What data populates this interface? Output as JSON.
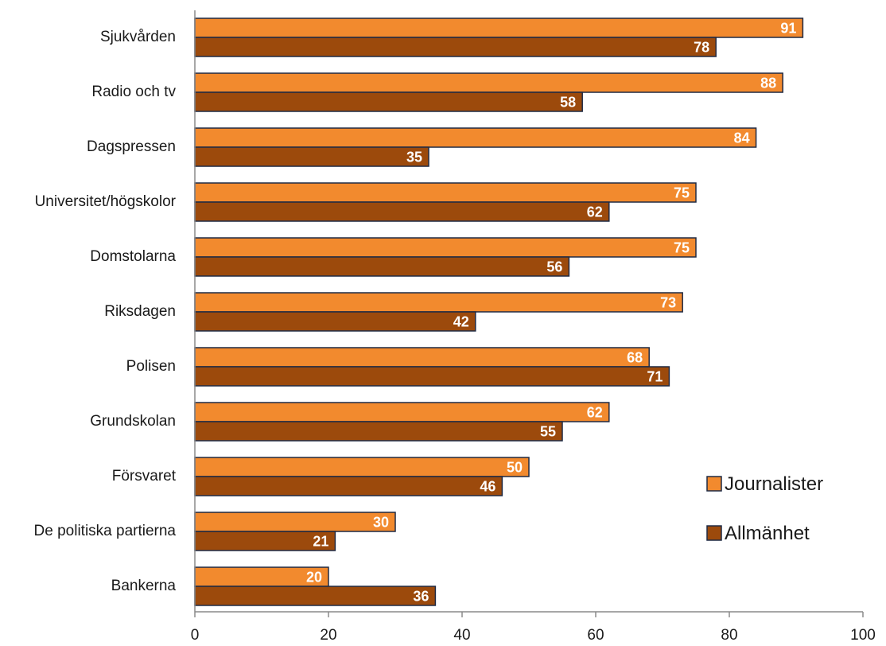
{
  "chart_data": {
    "type": "bar",
    "orientation": "horizontal",
    "categories": [
      "Sjukvården",
      "Radio och tv",
      "Dagspressen",
      "Universitet/högskolor",
      "Domstolarna",
      "Riksdagen",
      "Polisen",
      "Grundskolan",
      "Försvaret",
      "De politiska partierna",
      "Bankerna"
    ],
    "series": [
      {
        "name": "Journalister",
        "color": "#F28A2E",
        "values": [
          91,
          88,
          84,
          75,
          75,
          73,
          68,
          62,
          50,
          30,
          20
        ]
      },
      {
        "name": "Allmänhet",
        "color": "#9C4A0C",
        "values": [
          78,
          58,
          35,
          62,
          56,
          42,
          71,
          55,
          46,
          21,
          36
        ]
      }
    ],
    "xlim": [
      0,
      100
    ],
    "xticks": [
      0,
      20,
      40,
      60,
      80,
      100
    ],
    "grid": false,
    "legend_position": "right",
    "data_labels": true
  }
}
